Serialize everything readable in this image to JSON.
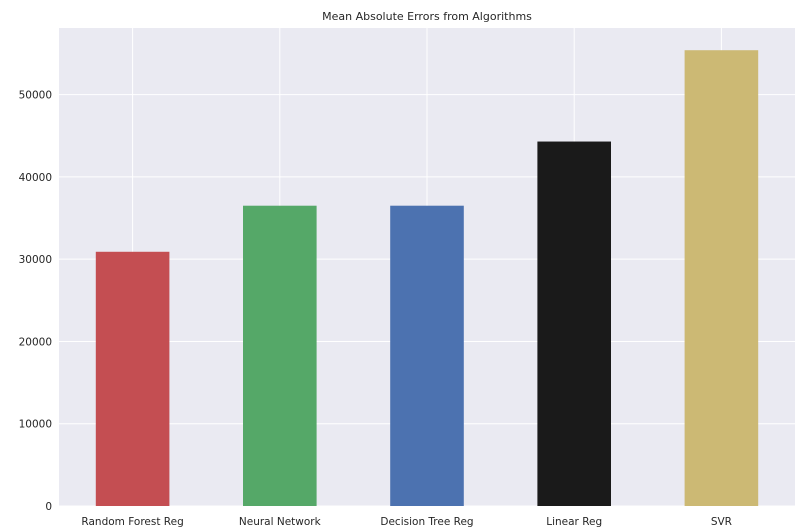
{
  "chart_data": {
    "type": "bar",
    "title": "Mean Absolute Errors from Algorithms",
    "xlabel": "",
    "ylabel": "",
    "categories": [
      "Random Forest Reg",
      "Neural Network",
      "Decision Tree Reg",
      "Linear Reg",
      "SVR"
    ],
    "values": [
      30900,
      36500,
      36500,
      44300,
      55400
    ],
    "colors": [
      "#c44e52",
      "#55a868",
      "#4c72b0",
      "#1a1a1a",
      "#ccb974"
    ],
    "ylim": [
      0,
      58100
    ],
    "yticks": [
      0,
      10000,
      20000,
      30000,
      40000,
      50000
    ],
    "ytick_labels": [
      "0",
      "10000",
      "20000",
      "30000",
      "40000",
      "50000"
    ],
    "grid": true,
    "background_color": "#eaeaf2",
    "grid_color": "#ffffff"
  }
}
